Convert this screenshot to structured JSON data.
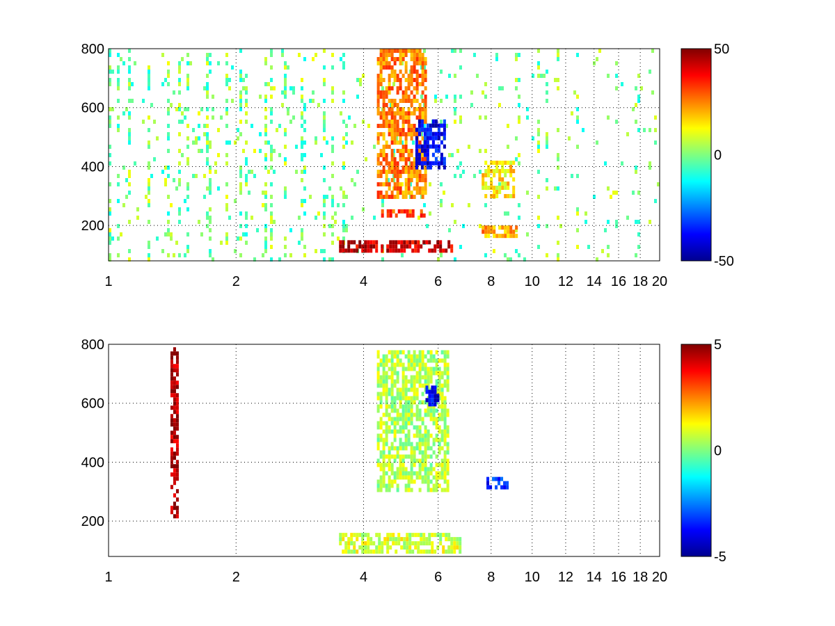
{
  "chart_data": [
    {
      "type": "heatmap",
      "title": "",
      "xlabel": "",
      "ylabel": "",
      "xlim": [
        1,
        20
      ],
      "ylim": [
        80,
        800
      ],
      "xticks": [
        1,
        2,
        4,
        6,
        8,
        10,
        12,
        14,
        16,
        18,
        20
      ],
      "xtick_labels": [
        "1",
        "2",
        "4",
        "6",
        "8",
        "10",
        "12",
        "14",
        "16",
        "18",
        "20"
      ],
      "yticks": [
        200,
        400,
        600,
        800
      ],
      "ytick_labels": [
        "200",
        "400",
        "600",
        "800"
      ],
      "x_scale": "log",
      "grid": true,
      "colormap": "jet",
      "clim": [
        -50,
        50
      ],
      "colorbar_ticks": [
        -50,
        0,
        50
      ],
      "colorbar_labels": [
        "-50",
        "0",
        "50"
      ],
      "features": [
        {
          "x": [
            3.5,
            6.5
          ],
          "y": [
            120,
            150
          ],
          "value": 42
        },
        {
          "x": [
            4.3,
            5.6
          ],
          "y": [
            300,
            800
          ],
          "value": 25
        },
        {
          "x": [
            5.3,
            6.2
          ],
          "y": [
            400,
            560
          ],
          "value": -38
        },
        {
          "x": [
            4.4,
            5.6
          ],
          "y": [
            235,
            255
          ],
          "value": 30
        },
        {
          "x": [
            7.6,
            9.2
          ],
          "y": [
            160,
            200
          ],
          "value": 22
        },
        {
          "x": [
            7.6,
            9.0
          ],
          "y": [
            300,
            420
          ],
          "value": 14
        }
      ]
    },
    {
      "type": "heatmap",
      "title": "",
      "xlabel": "",
      "ylabel": "",
      "xlim": [
        1,
        20
      ],
      "ylim": [
        80,
        800
      ],
      "xticks": [
        1,
        2,
        4,
        6,
        8,
        10,
        12,
        14,
        16,
        18,
        20
      ],
      "xtick_labels": [
        "1",
        "2",
        "4",
        "6",
        "8",
        "10",
        "12",
        "14",
        "16",
        "18",
        "20"
      ],
      "yticks": [
        200,
        400,
        600,
        800
      ],
      "ytick_labels": [
        "200",
        "400",
        "600",
        "800"
      ],
      "x_scale": "log",
      "grid": true,
      "colormap": "jet",
      "clim": [
        -5,
        5
      ],
      "colorbar_ticks": [
        -5,
        0,
        5
      ],
      "colorbar_labels": [
        "-5",
        "0",
        "5"
      ],
      "features": [
        {
          "x": [
            4.3,
            6.3
          ],
          "y": [
            300,
            780
          ],
          "value": 0.5
        },
        {
          "x": [
            3.5,
            6.8
          ],
          "y": [
            100,
            160
          ],
          "value": 0.8
        },
        {
          "x": [
            5.6,
            6.0
          ],
          "y": [
            600,
            660
          ],
          "value": -3.8
        },
        {
          "x": [
            7.8,
            8.8
          ],
          "y": [
            320,
            350
          ],
          "value": -3.5
        },
        {
          "x": [
            1.4,
            1.45
          ],
          "y": [
            210,
            790
          ],
          "value": 4.5
        }
      ]
    }
  ]
}
